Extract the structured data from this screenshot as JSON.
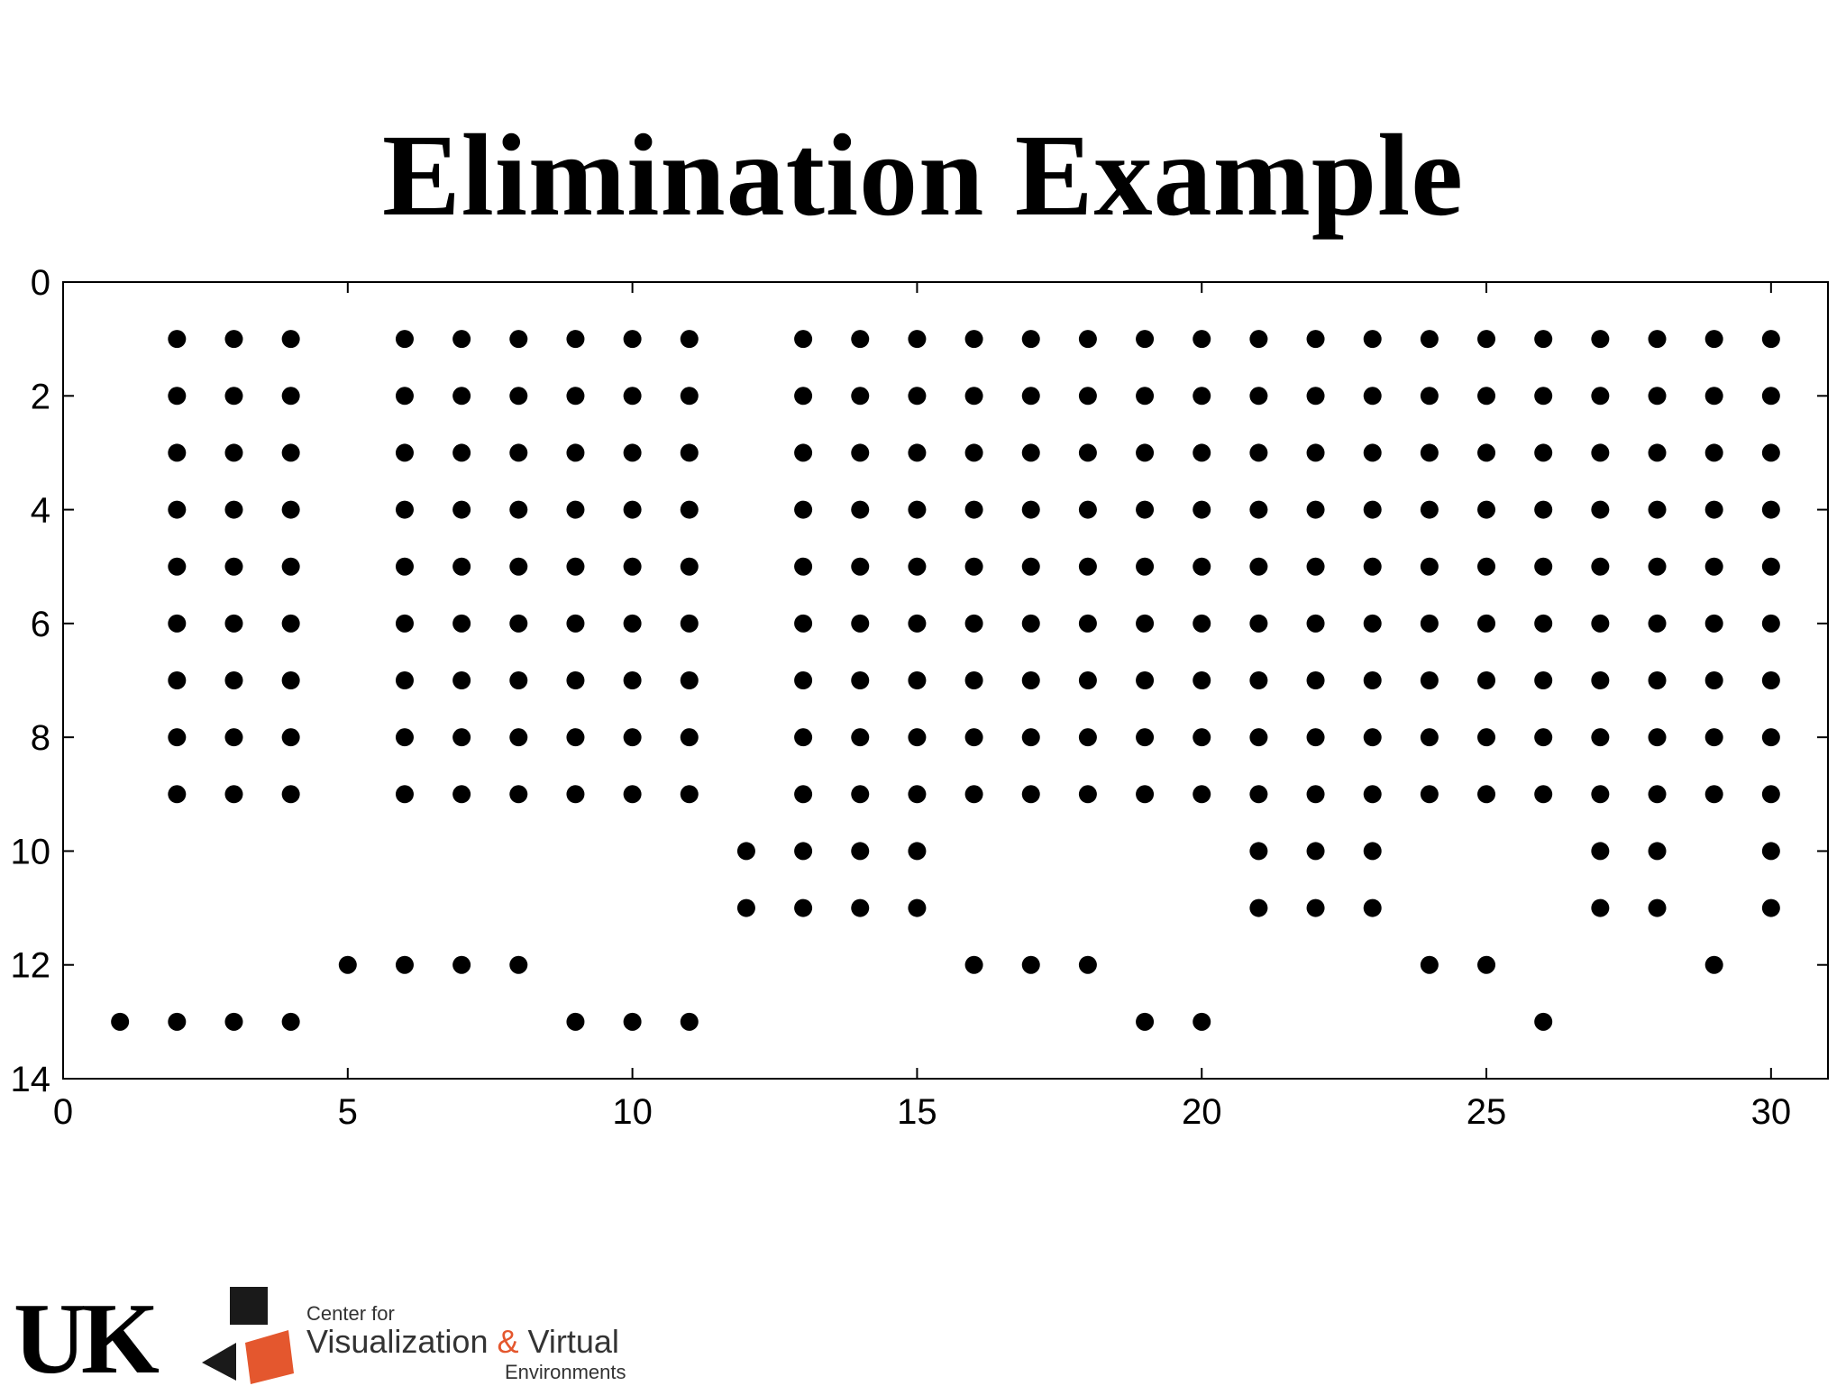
{
  "slide": {
    "title": "Elimination Example"
  },
  "chart_data": {
    "type": "scatter",
    "title": "",
    "xlabel": "",
    "ylabel": "",
    "xlim": [
      0,
      31
    ],
    "ylim": [
      14,
      0
    ],
    "y_axis_reversed": true,
    "x_ticks": [
      0,
      5,
      10,
      15,
      20,
      25,
      30
    ],
    "y_ticks": [
      0,
      2,
      4,
      6,
      8,
      10,
      12,
      14
    ],
    "grid": false,
    "legend": "none",
    "marker_color": "#000000",
    "marker": "filled-circle",
    "points_by_column": [
      {
        "x": 1,
        "y": [
          13
        ]
      },
      {
        "x": 2,
        "y": [
          1,
          2,
          3,
          4,
          5,
          6,
          7,
          8,
          9,
          13
        ]
      },
      {
        "x": 3,
        "y": [
          1,
          2,
          3,
          4,
          5,
          6,
          7,
          8,
          9,
          13
        ]
      },
      {
        "x": 4,
        "y": [
          1,
          2,
          3,
          4,
          5,
          6,
          7,
          8,
          9,
          13
        ]
      },
      {
        "x": 5,
        "y": [
          12
        ]
      },
      {
        "x": 6,
        "y": [
          1,
          2,
          3,
          4,
          5,
          6,
          7,
          8,
          9,
          12
        ]
      },
      {
        "x": 7,
        "y": [
          1,
          2,
          3,
          4,
          5,
          6,
          7,
          8,
          9,
          12
        ]
      },
      {
        "x": 8,
        "y": [
          1,
          2,
          3,
          4,
          5,
          6,
          7,
          8,
          9,
          12
        ]
      },
      {
        "x": 9,
        "y": [
          1,
          2,
          3,
          4,
          5,
          6,
          7,
          8,
          9,
          13
        ]
      },
      {
        "x": 10,
        "y": [
          1,
          2,
          3,
          4,
          5,
          6,
          7,
          8,
          9,
          13
        ]
      },
      {
        "x": 11,
        "y": [
          1,
          2,
          3,
          4,
          5,
          6,
          7,
          8,
          9,
          13
        ]
      },
      {
        "x": 12,
        "y": [
          10,
          11
        ]
      },
      {
        "x": 13,
        "y": [
          1,
          2,
          3,
          4,
          5,
          6,
          7,
          8,
          9,
          10,
          11
        ]
      },
      {
        "x": 14,
        "y": [
          1,
          2,
          3,
          4,
          5,
          6,
          7,
          8,
          9,
          10,
          11
        ]
      },
      {
        "x": 15,
        "y": [
          1,
          2,
          3,
          4,
          5,
          6,
          7,
          8,
          9,
          10,
          11
        ]
      },
      {
        "x": 16,
        "y": [
          1,
          2,
          3,
          4,
          5,
          6,
          7,
          8,
          9,
          12
        ]
      },
      {
        "x": 17,
        "y": [
          1,
          2,
          3,
          4,
          5,
          6,
          7,
          8,
          9,
          12
        ]
      },
      {
        "x": 18,
        "y": [
          1,
          2,
          3,
          4,
          5,
          6,
          7,
          8,
          9,
          12
        ]
      },
      {
        "x": 19,
        "y": [
          1,
          2,
          3,
          4,
          5,
          6,
          7,
          8,
          9,
          13
        ]
      },
      {
        "x": 20,
        "y": [
          1,
          2,
          3,
          4,
          5,
          6,
          7,
          8,
          9,
          13
        ]
      },
      {
        "x": 21,
        "y": [
          1,
          2,
          3,
          4,
          5,
          6,
          7,
          8,
          9,
          10,
          11
        ]
      },
      {
        "x": 22,
        "y": [
          1,
          2,
          3,
          4,
          5,
          6,
          7,
          8,
          9,
          10,
          11
        ]
      },
      {
        "x": 23,
        "y": [
          1,
          2,
          3,
          4,
          5,
          6,
          7,
          8,
          9,
          10,
          11
        ]
      },
      {
        "x": 24,
        "y": [
          1,
          2,
          3,
          4,
          5,
          6,
          7,
          8,
          9,
          12
        ]
      },
      {
        "x": 25,
        "y": [
          1,
          2,
          3,
          4,
          5,
          6,
          7,
          8,
          9,
          12
        ]
      },
      {
        "x": 26,
        "y": [
          1,
          2,
          3,
          4,
          5,
          6,
          7,
          8,
          9,
          13
        ]
      },
      {
        "x": 27,
        "y": [
          1,
          2,
          3,
          4,
          5,
          6,
          7,
          8,
          9,
          10,
          11
        ]
      },
      {
        "x": 28,
        "y": [
          1,
          2,
          3,
          4,
          5,
          6,
          7,
          8,
          9,
          10,
          11
        ]
      },
      {
        "x": 29,
        "y": [
          1,
          2,
          3,
          4,
          5,
          6,
          7,
          8,
          9,
          12
        ]
      },
      {
        "x": 30,
        "y": [
          1,
          2,
          3,
          4,
          5,
          6,
          7,
          8,
          9,
          10,
          11
        ]
      }
    ]
  },
  "footer": {
    "uk_logo_text": "UK",
    "cvve_line1": "Center for",
    "cvve_line2_a": "Visualization ",
    "cvve_amp": "&",
    "cvve_line2_b": " Virtual",
    "cvve_line3": "Environments",
    "cvve_icon": "cvve-squares-logo",
    "accent_color": "#e4572e"
  }
}
